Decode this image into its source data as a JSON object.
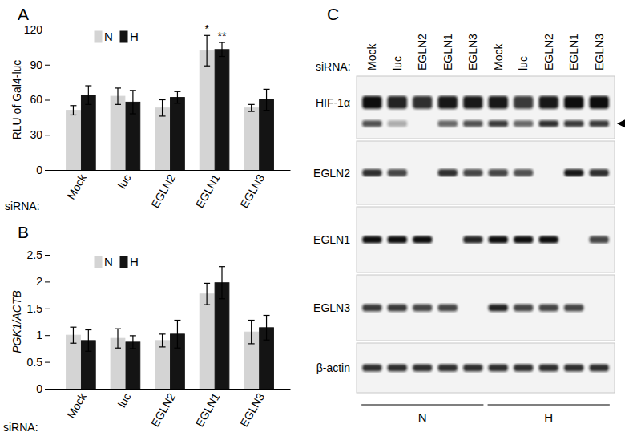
{
  "chart_data": [
    {
      "type": "bar",
      "title": "A",
      "ylabel": "RLU of Gal4-luc",
      "xlabel": "siRNA:",
      "categories": [
        "Mock",
        "luc",
        "EGLN2",
        "EGLN1",
        "EGLN3"
      ],
      "series": [
        {
          "name": "N",
          "color": "#d4d4d4",
          "values": [
            51,
            63,
            53,
            102,
            53
          ],
          "errors": [
            4,
            7,
            7,
            13,
            3
          ]
        },
        {
          "name": "H",
          "color": "#141414",
          "values": [
            64,
            58,
            62,
            103,
            60
          ],
          "errors": [
            8,
            10,
            5,
            6,
            9
          ]
        }
      ],
      "ylim": [
        0,
        120
      ],
      "yticks": [
        0,
        30,
        60,
        90,
        120
      ],
      "grid": false,
      "legend": "top-left",
      "annotations": [
        {
          "text": "*",
          "category": "EGLN1",
          "series": "N"
        },
        {
          "text": "**",
          "category": "EGLN1",
          "series": "H"
        }
      ]
    },
    {
      "type": "bar",
      "title": "B",
      "ylabel": "PGK1/ACTB",
      "xlabel": "siRNA:",
      "categories": [
        "Mock",
        "luc",
        "EGLN2",
        "EGLN1",
        "EGLN3"
      ],
      "series": [
        {
          "name": "N",
          "color": "#d4d4d4",
          "values": [
            1.0,
            0.94,
            0.9,
            1.77,
            1.06
          ],
          "errors": [
            0.15,
            0.18,
            0.12,
            0.2,
            0.22
          ]
        },
        {
          "name": "H",
          "color": "#141414",
          "values": [
            0.9,
            0.87,
            1.02,
            1.98,
            1.14
          ],
          "errors": [
            0.2,
            0.12,
            0.26,
            0.3,
            0.23
          ]
        }
      ],
      "ylim": [
        0,
        2.5
      ],
      "yticks": [
        0,
        0.5,
        1,
        1.5,
        2,
        2.5
      ],
      "grid": false,
      "legend": "top-left"
    },
    {
      "type": "blot",
      "title": "C",
      "xlabel": "siRNA:",
      "categories": [
        "Mock",
        "luc",
        "EGLN2",
        "EGLN1",
        "EGLN3",
        "Mock",
        "luc",
        "EGLN2",
        "EGLN1",
        "EGLN3"
      ],
      "groups": [
        {
          "name": "N",
          "lanes": 5
        },
        {
          "name": "H",
          "lanes": 5
        }
      ],
      "rows": [
        {
          "label": "HIF-1α",
          "bands": [
            1,
            0.9,
            0.85,
            0.95,
            0.95,
            0.95,
            0.8,
            0.95,
            1,
            1
          ],
          "lower_bands": [
            0.7,
            0.3,
            0,
            0.6,
            0.7,
            0.8,
            0.6,
            0.85,
            0.8,
            0.8
          ]
        },
        {
          "label": "EGLN2",
          "bands": [
            0.85,
            0.75,
            0,
            0.85,
            0.75,
            0.75,
            0.7,
            0,
            0.95,
            0.85
          ]
        },
        {
          "label": "EGLN1",
          "bands": [
            1,
            1,
            1,
            0,
            0.9,
            1,
            1,
            1,
            0,
            0.75
          ]
        },
        {
          "label": "EGLN3",
          "bands": [
            0.8,
            0.8,
            0.75,
            0.75,
            0,
            0.9,
            0.75,
            0.75,
            0.75,
            0
          ]
        },
        {
          "label": "β-actin",
          "bands": [
            0.85,
            0.85,
            0.85,
            0.85,
            0.85,
            0.85,
            0.85,
            0.85,
            0.85,
            0.85
          ]
        }
      ]
    }
  ]
}
